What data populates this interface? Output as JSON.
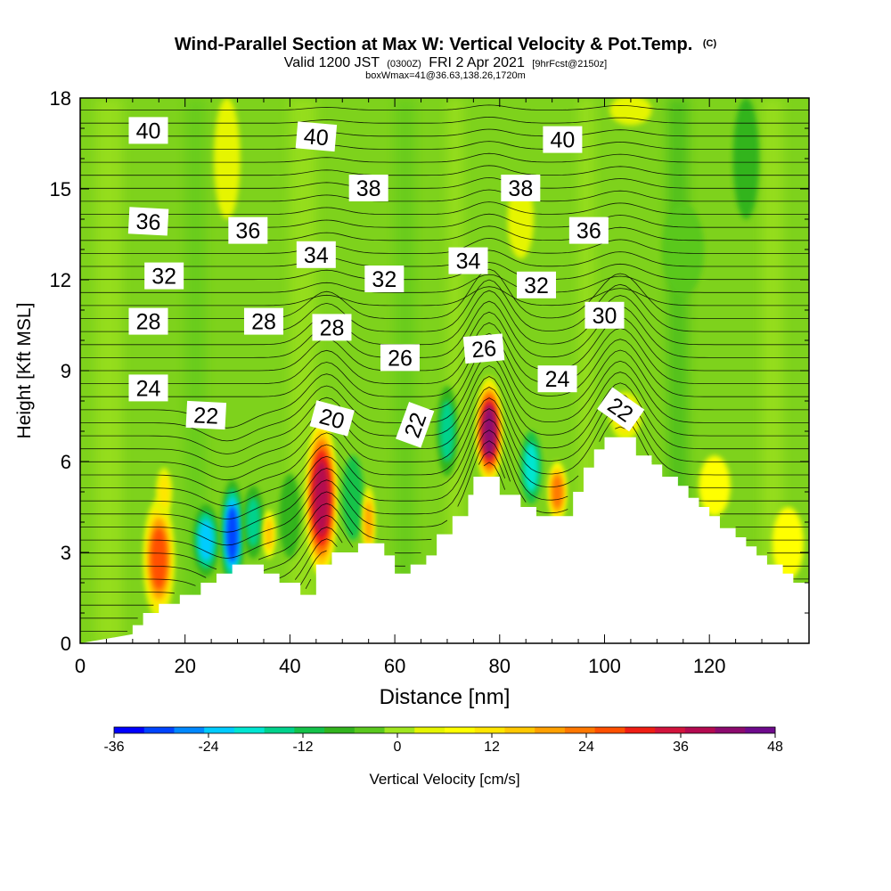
{
  "title": {
    "main": "Wind-Parallel Section at Max W: Vertical Velocity & Pot.Temp.",
    "copyright": "(C)",
    "valid_prefix": "Valid 1200 JST",
    "valid_utc": "(0300Z)",
    "valid_date": "FRI 2 Apr 2021",
    "forecast": "[9hrFcst@2150z]",
    "boxwmax": "boxWmax=41@36.63,138.26,1720m"
  },
  "chart_data": {
    "type": "heatmap",
    "title": "Wind-Parallel Section at Max W: Vertical Velocity & Pot.Temp.",
    "xlabel": "Distance [nm]",
    "ylabel": "Height [Kft MSL]",
    "xlim": [
      0,
      139
    ],
    "ylim": [
      0,
      18
    ],
    "x_ticks": [
      0,
      20,
      40,
      60,
      80,
      100,
      120
    ],
    "y_ticks": [
      0,
      3,
      6,
      9,
      12,
      15,
      18
    ],
    "grid": false,
    "background_value": 0,
    "terrain_kft": [
      [
        0,
        0
      ],
      [
        10,
        0.3
      ],
      [
        10,
        0.6
      ],
      [
        12,
        0.6
      ],
      [
        12,
        1.0
      ],
      [
        15,
        1.0
      ],
      [
        15,
        1.3
      ],
      [
        19,
        1.3
      ],
      [
        19,
        1.6
      ],
      [
        23,
        1.6
      ],
      [
        23,
        2.0
      ],
      [
        26,
        2.0
      ],
      [
        26,
        2.3
      ],
      [
        29,
        2.3
      ],
      [
        29,
        2.6
      ],
      [
        35,
        2.6
      ],
      [
        35,
        2.3
      ],
      [
        38,
        2.3
      ],
      [
        38,
        2.0
      ],
      [
        42,
        2.0
      ],
      [
        42,
        1.6
      ],
      [
        45,
        1.6
      ],
      [
        45,
        2.6
      ],
      [
        48,
        2.6
      ],
      [
        48,
        3.0
      ],
      [
        53,
        3.0
      ],
      [
        53,
        3.3
      ],
      [
        56,
        3.3
      ],
      [
        58,
        3.3
      ],
      [
        58,
        2.9
      ],
      [
        60,
        2.9
      ],
      [
        60,
        2.3
      ],
      [
        63,
        2.3
      ],
      [
        63,
        2.6
      ],
      [
        66,
        2.6
      ],
      [
        66,
        2.9
      ],
      [
        68,
        2.9
      ],
      [
        68,
        3.6
      ],
      [
        71,
        3.6
      ],
      [
        71,
        4.2
      ],
      [
        74,
        4.2
      ],
      [
        74,
        4.9
      ],
      [
        75,
        4.9
      ],
      [
        75,
        5.5
      ],
      [
        80,
        5.5
      ],
      [
        80,
        4.9
      ],
      [
        84,
        4.9
      ],
      [
        84,
        4.5
      ],
      [
        87,
        4.5
      ],
      [
        87,
        4.2
      ],
      [
        94,
        4.2
      ],
      [
        94,
        5.0
      ],
      [
        96,
        5.0
      ],
      [
        96,
        5.8
      ],
      [
        98,
        5.8
      ],
      [
        98,
        6.4
      ],
      [
        100,
        6.4
      ],
      [
        100,
        6.8
      ],
      [
        106,
        6.8
      ],
      [
        106,
        6.2
      ],
      [
        109,
        6.2
      ],
      [
        109,
        5.9
      ],
      [
        111,
        5.9
      ],
      [
        111,
        5.5
      ],
      [
        114,
        5.5
      ],
      [
        114,
        5.2
      ],
      [
        116,
        5.2
      ],
      [
        116,
        4.8
      ],
      [
        118,
        4.8
      ],
      [
        118,
        4.5
      ],
      [
        120,
        4.5
      ],
      [
        120,
        4.2
      ],
      [
        122,
        4.2
      ],
      [
        122,
        3.8
      ],
      [
        125,
        3.8
      ],
      [
        125,
        3.5
      ],
      [
        127,
        3.5
      ],
      [
        127,
        3.2
      ],
      [
        129,
        3.2
      ],
      [
        129,
        2.9
      ],
      [
        131,
        2.9
      ],
      [
        131,
        2.6
      ],
      [
        134,
        2.6
      ],
      [
        134,
        2.3
      ],
      [
        136,
        2.3
      ],
      [
        136,
        2.0
      ],
      [
        139,
        2.0
      ]
    ],
    "vertical_velocity_cells": [
      {
        "x": 15,
        "y": 2.8,
        "rx": 3.0,
        "ry": 2.0,
        "value": 28
      },
      {
        "x": 16,
        "y": 5.0,
        "rx": 1.5,
        "ry": 0.8,
        "value": 12
      },
      {
        "x": 29,
        "y": 3.6,
        "rx": 2.2,
        "ry": 1.8,
        "value": -32
      },
      {
        "x": 24,
        "y": 3.4,
        "rx": 2.5,
        "ry": 1.2,
        "value": -22
      },
      {
        "x": 33,
        "y": 4.0,
        "rx": 2.0,
        "ry": 1.2,
        "value": -14
      },
      {
        "x": 46,
        "y": 4.8,
        "rx": 3.0,
        "ry": 2.6,
        "value": 40
      },
      {
        "x": 40,
        "y": 4.2,
        "rx": 2.0,
        "ry": 1.4,
        "value": -8
      },
      {
        "x": 52,
        "y": 4.8,
        "rx": 2.0,
        "ry": 1.4,
        "value": -10
      },
      {
        "x": 55,
        "y": 4.0,
        "rx": 1.2,
        "ry": 1.2,
        "value": 20
      },
      {
        "x": 36,
        "y": 3.6,
        "rx": 1.2,
        "ry": 0.8,
        "value": 18
      },
      {
        "x": 78,
        "y": 7.0,
        "rx": 2.5,
        "ry": 1.8,
        "value": 44
      },
      {
        "x": 70,
        "y": 7.0,
        "rx": 2.0,
        "ry": 1.5,
        "value": -16
      },
      {
        "x": 86,
        "y": 5.8,
        "rx": 2.0,
        "ry": 1.2,
        "value": -18
      },
      {
        "x": 91,
        "y": 5.0,
        "rx": 1.8,
        "ry": 1.0,
        "value": 24
      },
      {
        "x": 104,
        "y": 7.5,
        "rx": 3.0,
        "ry": 0.8,
        "value": 14
      },
      {
        "x": 121,
        "y": 5.2,
        "rx": 3.0,
        "ry": 1.0,
        "value": 8
      },
      {
        "x": 135,
        "y": 3.3,
        "rx": 3.0,
        "ry": 1.2,
        "value": 10
      },
      {
        "x": 84,
        "y": 14.0,
        "rx": 2.5,
        "ry": 1.3,
        "value": 6
      },
      {
        "x": 105,
        "y": 17.6,
        "rx": 4.0,
        "ry": 0.5,
        "value": 6
      },
      {
        "x": 127,
        "y": 16.0,
        "rx": 2.5,
        "ry": 2.0,
        "value": -6
      },
      {
        "x": 115,
        "y": 13.0,
        "rx": 4.0,
        "ry": 1.5,
        "value": -4
      },
      {
        "x": 28,
        "y": 16.0,
        "rx": 2.5,
        "ry": 2.0,
        "value": 5
      }
    ],
    "potential_temperature_labels": [
      {
        "value": "40",
        "x": 13,
        "y": 16.9,
        "angle": 0
      },
      {
        "value": "40",
        "x": 45,
        "y": 16.7,
        "angle": 5
      },
      {
        "value": "40",
        "x": 92,
        "y": 16.6,
        "angle": 0
      },
      {
        "value": "38",
        "x": 55,
        "y": 15.0,
        "angle": 0
      },
      {
        "value": "38",
        "x": 84,
        "y": 15.0,
        "angle": 0
      },
      {
        "value": "36",
        "x": 13,
        "y": 13.9,
        "angle": 3
      },
      {
        "value": "36",
        "x": 32,
        "y": 13.6,
        "angle": 0
      },
      {
        "value": "36",
        "x": 97,
        "y": 13.6,
        "angle": 0
      },
      {
        "value": "34",
        "x": 45,
        "y": 12.8,
        "angle": 0
      },
      {
        "value": "34",
        "x": 74,
        "y": 12.6,
        "angle": 0
      },
      {
        "value": "32",
        "x": 16,
        "y": 12.1,
        "angle": 0
      },
      {
        "value": "32",
        "x": 58,
        "y": 12.0,
        "angle": 0
      },
      {
        "value": "32",
        "x": 87,
        "y": 11.8,
        "angle": 0
      },
      {
        "value": "30",
        "x": 100,
        "y": 10.8,
        "angle": 0
      },
      {
        "value": "28",
        "x": 13,
        "y": 10.6,
        "angle": 0
      },
      {
        "value": "28",
        "x": 35,
        "y": 10.6,
        "angle": 0
      },
      {
        "value": "28",
        "x": 48,
        "y": 10.4,
        "angle": 0
      },
      {
        "value": "26",
        "x": 61,
        "y": 9.4,
        "angle": 0
      },
      {
        "value": "26",
        "x": 77,
        "y": 9.7,
        "angle": -5
      },
      {
        "value": "24",
        "x": 13,
        "y": 8.4,
        "angle": 0
      },
      {
        "value": "24",
        "x": 91,
        "y": 8.7,
        "angle": 0
      },
      {
        "value": "22",
        "x": 24,
        "y": 7.5,
        "angle": 3
      },
      {
        "value": "22",
        "x": 64,
        "y": 7.2,
        "angle": -70
      },
      {
        "value": "22",
        "x": 103,
        "y": 7.7,
        "angle": 35
      },
      {
        "value": "20",
        "x": 48,
        "y": 7.4,
        "angle": 15
      }
    ],
    "colorbar": {
      "label": "Vertical Velocity [cm/s]",
      "min": -36,
      "max": 48,
      "step": 4,
      "tick_labels": [
        "-36",
        "-24",
        "-12",
        "0",
        "12",
        "24",
        "36",
        "48"
      ],
      "colors": [
        "#0000ff",
        "#0044ff",
        "#0088ff",
        "#00ccff",
        "#00e6d2",
        "#00d28c",
        "#14c24a",
        "#32b41e",
        "#5ac81e",
        "#a0e61e",
        "#e6f500",
        "#ffff00",
        "#ffe600",
        "#ffc800",
        "#ffa000",
        "#ff7800",
        "#ff5000",
        "#f01e14",
        "#d2143c",
        "#b40a50",
        "#8c0a6e",
        "#6e0a8c"
      ]
    }
  }
}
